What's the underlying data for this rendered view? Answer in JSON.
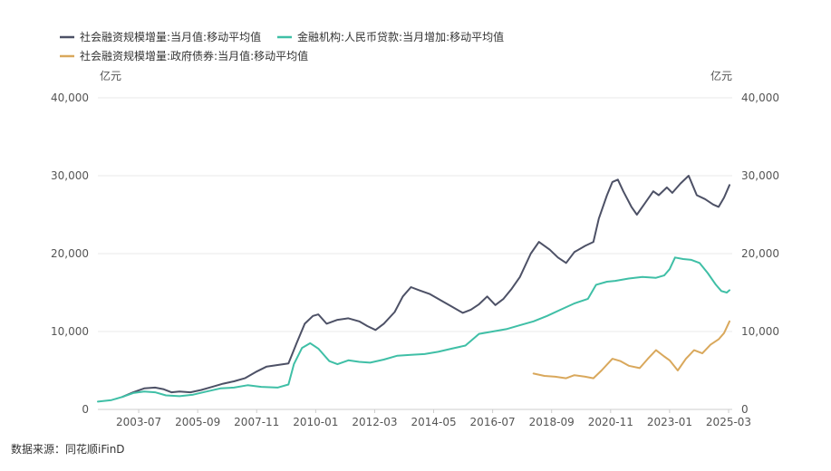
{
  "chart_data": {
    "type": "line",
    "legend": [
      {
        "name": "社会融资规模增量:当月值:移动平均值",
        "color": "#4d5166"
      },
      {
        "name": "金融机构:人民币贷款:当月增加:移动平均值",
        "color": "#3fbfa6"
      },
      {
        "name": "社会融资规模增量:政府债券:当月值:移动平均值",
        "color": "#d9a85c"
      }
    ],
    "left_unit": "亿元",
    "right_unit": "亿元",
    "ylim": [
      0,
      40000
    ],
    "y_ticks": [
      "0",
      "10,000",
      "20,000",
      "30,000",
      "40,000"
    ],
    "x_ticks": [
      "2003-07",
      "2005-09",
      "2007-11",
      "2010-01",
      "2012-03",
      "2014-05",
      "2016-07",
      "2018-09",
      "2020-11",
      "2023-01",
      "2025-03"
    ],
    "x_range": [
      2002.0,
      2025.3
    ],
    "grid": "horizontal",
    "series": [
      {
        "name": "社会融资规模增量:当月值:移动平均值",
        "color": "#4d5166",
        "points": [
          [
            2002.9,
            1600
          ],
          [
            2003.3,
            2200
          ],
          [
            2003.7,
            2700
          ],
          [
            2004.1,
            2800
          ],
          [
            2004.4,
            2600
          ],
          [
            2004.7,
            2200
          ],
          [
            2005.0,
            2300
          ],
          [
            2005.4,
            2200
          ],
          [
            2005.8,
            2500
          ],
          [
            2006.2,
            2900
          ],
          [
            2006.6,
            3300
          ],
          [
            2007.0,
            3600
          ],
          [
            2007.4,
            4000
          ],
          [
            2007.8,
            4800
          ],
          [
            2008.2,
            5500
          ],
          [
            2008.6,
            5700
          ],
          [
            2009.0,
            5900
          ],
          [
            2009.3,
            8500
          ],
          [
            2009.6,
            11000
          ],
          [
            2009.9,
            12000
          ],
          [
            2010.1,
            12200
          ],
          [
            2010.4,
            11000
          ],
          [
            2010.8,
            11500
          ],
          [
            2011.2,
            11700
          ],
          [
            2011.6,
            11300
          ],
          [
            2011.9,
            10700
          ],
          [
            2012.2,
            10200
          ],
          [
            2012.5,
            11000
          ],
          [
            2012.9,
            12500
          ],
          [
            2013.2,
            14500
          ],
          [
            2013.5,
            15700
          ],
          [
            2013.8,
            15300
          ],
          [
            2014.2,
            14800
          ],
          [
            2014.6,
            14000
          ],
          [
            2015.0,
            13200
          ],
          [
            2015.4,
            12400
          ],
          [
            2015.7,
            12800
          ],
          [
            2016.0,
            13500
          ],
          [
            2016.3,
            14500
          ],
          [
            2016.6,
            13400
          ],
          [
            2016.9,
            14200
          ],
          [
            2017.2,
            15500
          ],
          [
            2017.5,
            17000
          ],
          [
            2017.9,
            20000
          ],
          [
            2018.2,
            21500
          ],
          [
            2018.6,
            20500
          ],
          [
            2018.9,
            19500
          ],
          [
            2019.2,
            18800
          ],
          [
            2019.5,
            20200
          ],
          [
            2019.9,
            21000
          ],
          [
            2020.2,
            21500
          ],
          [
            2020.4,
            24500
          ],
          [
            2020.7,
            27500
          ],
          [
            2020.9,
            29200
          ],
          [
            2021.1,
            29500
          ],
          [
            2021.3,
            28000
          ],
          [
            2021.6,
            26000
          ],
          [
            2021.8,
            25000
          ],
          [
            2022.1,
            26500
          ],
          [
            2022.4,
            28000
          ],
          [
            2022.6,
            27500
          ],
          [
            2022.9,
            28500
          ],
          [
            2023.1,
            27800
          ],
          [
            2023.4,
            29000
          ],
          [
            2023.7,
            30000
          ],
          [
            2024.0,
            27500
          ],
          [
            2024.3,
            27000
          ],
          [
            2024.6,
            26300
          ],
          [
            2024.8,
            26000
          ],
          [
            2025.0,
            27200
          ],
          [
            2025.2,
            28800
          ]
        ]
      },
      {
        "name": "金融机构:人民币贷款:当月增加:移动平均值",
        "color": "#3fbfa6",
        "points": [
          [
            2002.0,
            1000
          ],
          [
            2002.5,
            1200
          ],
          [
            2002.9,
            1600
          ],
          [
            2003.3,
            2100
          ],
          [
            2003.7,
            2300
          ],
          [
            2004.1,
            2200
          ],
          [
            2004.5,
            1800
          ],
          [
            2005.0,
            1700
          ],
          [
            2005.5,
            1900
          ],
          [
            2006.0,
            2300
          ],
          [
            2006.5,
            2700
          ],
          [
            2007.0,
            2800
          ],
          [
            2007.5,
            3100
          ],
          [
            2008.0,
            2900
          ],
          [
            2008.6,
            2800
          ],
          [
            2009.0,
            3200
          ],
          [
            2009.2,
            5800
          ],
          [
            2009.5,
            7900
          ],
          [
            2009.8,
            8500
          ],
          [
            2010.1,
            7800
          ],
          [
            2010.5,
            6200
          ],
          [
            2010.8,
            5800
          ],
          [
            2011.2,
            6300
          ],
          [
            2011.6,
            6100
          ],
          [
            2012.0,
            6000
          ],
          [
            2012.5,
            6400
          ],
          [
            2013.0,
            6900
          ],
          [
            2013.5,
            7000
          ],
          [
            2014.0,
            7100
          ],
          [
            2014.5,
            7400
          ],
          [
            2015.0,
            7800
          ],
          [
            2015.5,
            8200
          ],
          [
            2016.0,
            9700
          ],
          [
            2016.5,
            10000
          ],
          [
            2017.0,
            10300
          ],
          [
            2017.5,
            10800
          ],
          [
            2018.0,
            11300
          ],
          [
            2018.5,
            12000
          ],
          [
            2019.0,
            12800
          ],
          [
            2019.5,
            13600
          ],
          [
            2020.0,
            14200
          ],
          [
            2020.3,
            16000
          ],
          [
            2020.7,
            16400
          ],
          [
            2021.0,
            16500
          ],
          [
            2021.5,
            16800
          ],
          [
            2022.0,
            17000
          ],
          [
            2022.5,
            16900
          ],
          [
            2022.8,
            17200
          ],
          [
            2023.0,
            18000
          ],
          [
            2023.2,
            19500
          ],
          [
            2023.5,
            19300
          ],
          [
            2023.8,
            19200
          ],
          [
            2024.1,
            18800
          ],
          [
            2024.4,
            17500
          ],
          [
            2024.7,
            16000
          ],
          [
            2024.9,
            15200
          ],
          [
            2025.1,
            15000
          ],
          [
            2025.2,
            15300
          ]
        ]
      },
      {
        "name": "社会融资规模增量:政府债券:当月值:移动平均值",
        "color": "#d9a85c",
        "points": [
          [
            2018.0,
            4600
          ],
          [
            2018.4,
            4300
          ],
          [
            2018.8,
            4200
          ],
          [
            2019.2,
            4000
          ],
          [
            2019.5,
            4400
          ],
          [
            2019.9,
            4200
          ],
          [
            2020.2,
            4000
          ],
          [
            2020.5,
            5000
          ],
          [
            2020.9,
            6500
          ],
          [
            2021.2,
            6200
          ],
          [
            2021.5,
            5600
          ],
          [
            2021.9,
            5300
          ],
          [
            2022.2,
            6500
          ],
          [
            2022.5,
            7600
          ],
          [
            2022.8,
            6800
          ],
          [
            2023.0,
            6300
          ],
          [
            2023.3,
            5000
          ],
          [
            2023.6,
            6500
          ],
          [
            2023.9,
            7600
          ],
          [
            2024.2,
            7200
          ],
          [
            2024.5,
            8300
          ],
          [
            2024.8,
            9000
          ],
          [
            2025.0,
            9800
          ],
          [
            2025.2,
            11300
          ]
        ]
      }
    ]
  },
  "source": "数据来源：同花顺iFinD"
}
